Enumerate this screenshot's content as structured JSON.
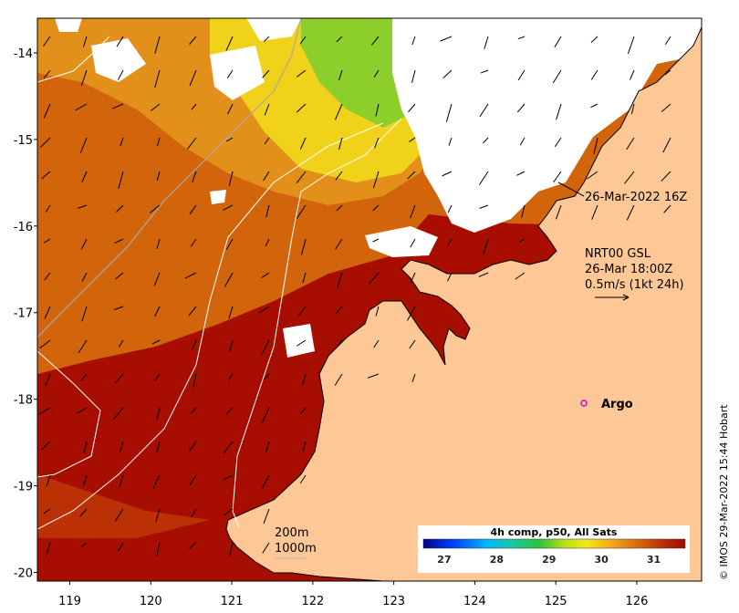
{
  "map": {
    "lon_ticks": [
      "119",
      "120",
      "121",
      "122",
      "123",
      "124",
      "125",
      "126"
    ],
    "lat_ticks": [
      "-14",
      "-15",
      "-16",
      "-17",
      "-18",
      "-19",
      "-20"
    ],
    "lon_range": [
      118.6,
      126.8
    ],
    "lat_range": [
      -20.1,
      -13.6
    ]
  },
  "annotations": {
    "timestamp": "26-Mar-2022 16Z",
    "current_line1": "NRT00 GSL",
    "current_line2": "26-Mar 18:00Z",
    "current_line3": "0.5m/s (1kt 24h)",
    "argo_label": "Argo",
    "contour_200": "200m",
    "contour_1000": "1000m"
  },
  "colorbar": {
    "title": "4h comp, p50, All Sats",
    "ticks": [
      "27",
      "28",
      "29",
      "30",
      "31"
    ],
    "range": [
      26.6,
      31.6
    ]
  },
  "credit": "© IMOS 29-Mar-2022 15:44 Hobart",
  "colors": {
    "land": "#fdc896",
    "ocean_warm": "#a80e00",
    "ocean_mid": "#d2650b",
    "ocean_cool": "#e8a31a",
    "cloud": "#ffffff",
    "argo_marker": "#d400d4"
  }
}
